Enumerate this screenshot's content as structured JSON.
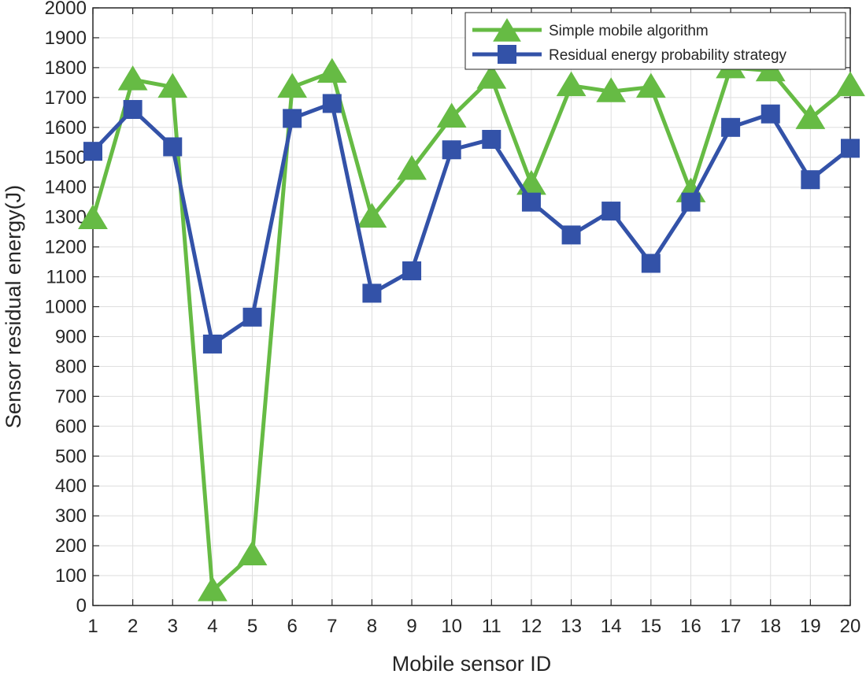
{
  "chart_data": {
    "type": "line",
    "title": "",
    "xlabel": "Mobile sensor ID",
    "ylabel": "Sensor residual energy(J)",
    "x": [
      1,
      2,
      3,
      4,
      5,
      6,
      7,
      8,
      9,
      10,
      11,
      12,
      13,
      14,
      15,
      16,
      17,
      18,
      19,
      20
    ],
    "x_ticks": [
      "1",
      "2",
      "3",
      "4",
      "5",
      "6",
      "7",
      "8",
      "9",
      "10",
      "11",
      "12",
      "13",
      "14",
      "15",
      "16",
      "17",
      "18",
      "19",
      "20"
    ],
    "y_ticks": [
      "0",
      "100",
      "200",
      "300",
      "400",
      "500",
      "600",
      "700",
      "800",
      "900",
      "1000",
      "1100",
      "1200",
      "1300",
      "1400",
      "1500",
      "1600",
      "1700",
      "1800",
      "1900",
      "2000"
    ],
    "xlim": [
      1,
      20
    ],
    "ylim": [
      0,
      2000
    ],
    "grid": true,
    "legend_position": "top-right",
    "series": [
      {
        "name": "Simple mobile algorithm",
        "color": "#66bb44",
        "marker": "triangle",
        "values": [
          1295,
          1760,
          1735,
          50,
          170,
          1735,
          1785,
          1300,
          1460,
          1635,
          1765,
          1410,
          1740,
          1720,
          1735,
          1385,
          1800,
          1790,
          1630,
          1740
        ]
      },
      {
        "name": "Residual energy probability strategy",
        "color": "#3352a8",
        "marker": "square",
        "values": [
          1520,
          1660,
          1535,
          875,
          965,
          1630,
          1680,
          1045,
          1120,
          1525,
          1560,
          1350,
          1240,
          1320,
          1145,
          1350,
          1600,
          1645,
          1425,
          1530
        ]
      }
    ]
  }
}
